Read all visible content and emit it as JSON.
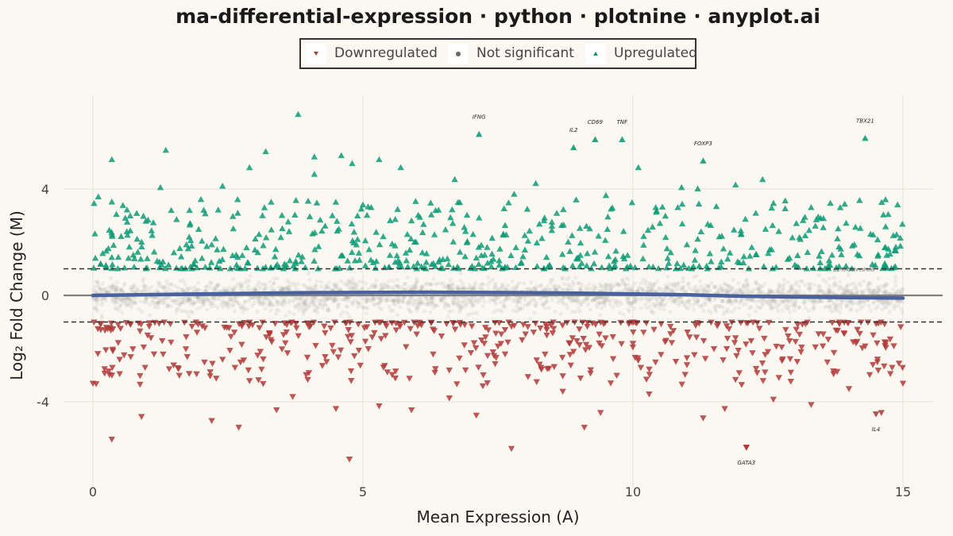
{
  "title": "ma-differential-expression · python · plotnine · anyplot.ai",
  "legend": {
    "down": "Downregulated",
    "ns": "Not significant",
    "up": "Upregulated"
  },
  "colors": {
    "background": "#FAF8F1",
    "up": "#0E9B76",
    "down": "#B03A3A",
    "ns": "#9A9A95",
    "trend": "#4A61A0",
    "zero_line": "#808080"
  },
  "chart_data": {
    "type": "scatter",
    "title": "ma-differential-expression · python · plotnine · anyplot.ai",
    "xlabel": "Mean Expression (A)",
    "ylabel": "Log₂ Fold Change (M)",
    "xlim": [
      -1.2,
      16.2
    ],
    "ylim": [
      -7.0,
      7.5
    ],
    "xticks": [
      "0",
      "5",
      "10",
      "15"
    ],
    "yticks": [
      "-4",
      "0",
      "4"
    ],
    "grid": true,
    "legend_position": "top",
    "threshold": 1,
    "threshold_label": "±2-fold threshold",
    "trend": {
      "x": [
        0,
        2,
        4,
        6,
        8,
        9,
        10,
        11,
        12,
        13,
        14,
        15
      ],
      "y": [
        0.0,
        0.05,
        0.1,
        0.12,
        0.1,
        0.08,
        0.05,
        0.02,
        -0.03,
        -0.06,
        -0.08,
        -0.1
      ]
    },
    "labeled_genes": [
      {
        "name": "IFNG",
        "x": 7.15,
        "y": 6.05
      },
      {
        "name": "IL2",
        "x": 8.9,
        "y": 5.55
      },
      {
        "name": "CD69",
        "x": 9.3,
        "y": 5.85
      },
      {
        "name": "TNF",
        "x": 9.8,
        "y": 5.85
      },
      {
        "name": "FOXP3",
        "x": 11.3,
        "y": 5.05
      },
      {
        "name": "TBX21",
        "x": 14.3,
        "y": 5.9
      },
      {
        "name": "IL4",
        "x": 14.5,
        "y": -4.45
      },
      {
        "name": "GATA3",
        "x": 12.1,
        "y": -5.7
      }
    ],
    "series": [
      {
        "name": "Upregulated",
        "x": [
          3.8,
          0.35,
          1.35,
          3.2,
          4.1,
          4.6,
          4.8,
          2.9,
          5.3,
          5.7,
          6.7,
          8.2,
          10.1,
          12.4,
          10.9,
          11.9,
          11.2,
          4.1,
          1.25,
          2.4,
          7.8,
          9.5,
          0.1,
          2.0,
          5.0,
          3.3,
          6.4,
          13.3,
          14.9,
          0.6,
          1.8,
          2.6,
          3.5,
          4.3,
          5.9,
          6.9,
          7.6,
          8.5,
          9.2,
          10.5,
          11.6,
          12.7,
          13.8,
          14.4,
          0.9,
          2.2,
          4.9,
          7.3,
          8.8,
          11.0,
          12.2,
          13.1,
          14.1,
          1.5,
          3.0,
          5.5,
          6.1,
          8.0,
          9.9,
          10.7,
          12.9,
          14.7
        ],
        "y": [
          6.8,
          5.1,
          5.45,
          5.4,
          5.2,
          5.25,
          4.95,
          4.8,
          5.1,
          4.8,
          4.35,
          4.2,
          4.8,
          4.35,
          4.05,
          4.15,
          4.0,
          4.55,
          4.05,
          4.1,
          3.8,
          3.75,
          3.7,
          3.6,
          3.4,
          3.5,
          3.2,
          3.3,
          3.4,
          2.9,
          2.7,
          2.5,
          3.0,
          2.6,
          2.8,
          2.4,
          2.3,
          2.6,
          2.5,
          2.7,
          2.2,
          2.4,
          2.5,
          2.3,
          2.0,
          1.9,
          2.1,
          1.8,
          2.0,
          1.9,
          1.8,
          2.1,
          1.9,
          1.6,
          1.7,
          1.5,
          1.6,
          1.7,
          1.5,
          1.6,
          1.4,
          1.5
        ]
      },
      {
        "name": "Downregulated",
        "x": [
          4.75,
          7.75,
          12.1,
          0.35,
          0.9,
          2.2,
          2.7,
          3.4,
          5.3,
          5.9,
          7.1,
          9.1,
          9.4,
          11.3,
          11.7,
          13.3,
          14.6,
          3.7,
          4.5,
          6.6,
          8.7,
          10.3,
          12.6,
          14.0,
          15.0,
          0.0,
          1.6,
          2.9,
          4.0,
          5.6,
          6.9,
          8.3,
          9.7,
          11.0,
          12.3,
          13.6,
          14.8,
          0.7,
          1.3,
          2.4,
          3.1,
          4.3,
          5.1,
          6.3,
          7.5,
          8.9,
          10.0,
          11.5,
          12.9,
          14.3
        ],
        "y": [
          -6.15,
          -5.75,
          -5.7,
          -5.4,
          -4.55,
          -4.7,
          -4.95,
          -4.3,
          -4.15,
          -4.3,
          -4.5,
          -4.95,
          -4.4,
          -4.6,
          -4.25,
          -4.1,
          -4.4,
          -3.8,
          -4.25,
          -3.85,
          -3.6,
          -3.7,
          -3.9,
          -3.5,
          -3.3,
          -3.3,
          -3.0,
          -3.2,
          -2.9,
          -3.1,
          -2.8,
          -2.7,
          -3.0,
          -2.6,
          -2.9,
          -2.5,
          -2.7,
          -2.3,
          -2.2,
          -2.4,
          -2.1,
          -2.3,
          -2.0,
          -2.2,
          -1.9,
          -2.1,
          -1.8,
          -2.0,
          -1.7,
          -1.9
        ]
      }
    ]
  }
}
